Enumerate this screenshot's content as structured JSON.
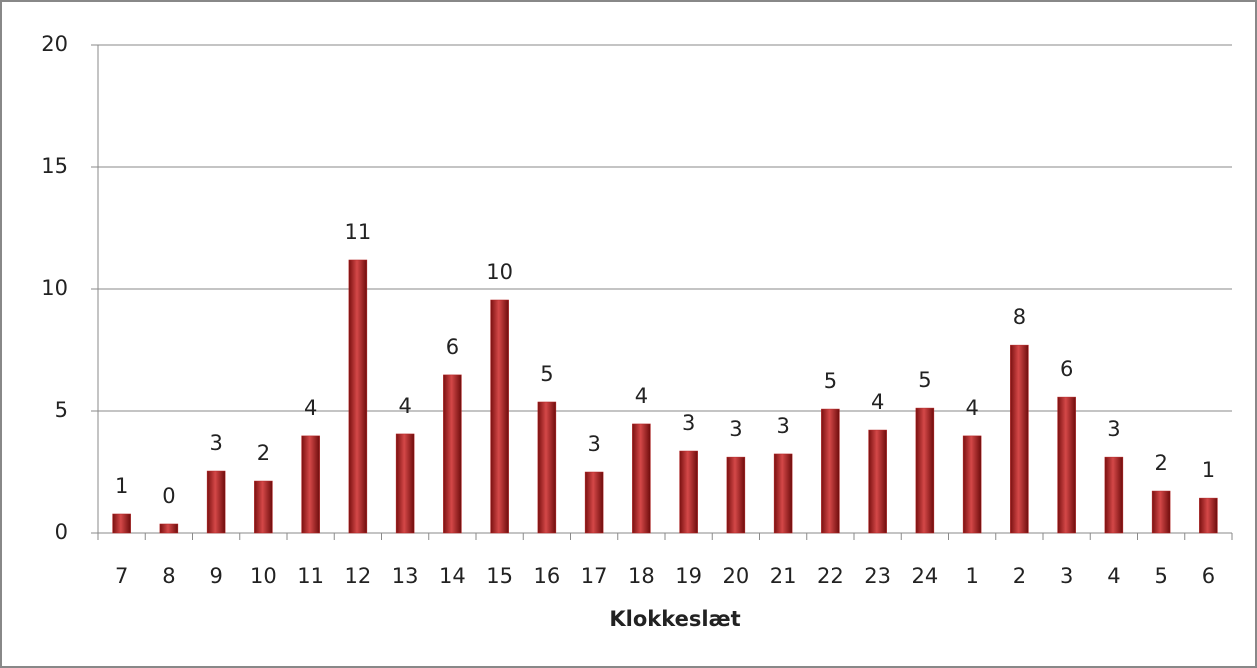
{
  "chart_data": {
    "type": "bar",
    "x_label": "Klokkeslæt",
    "categories": [
      "7",
      "8",
      "9",
      "10",
      "11",
      "12",
      "13",
      "14",
      "15",
      "16",
      "17",
      "18",
      "19",
      "20",
      "21",
      "22",
      "23",
      "24",
      "1",
      "2",
      "3",
      "4",
      "5",
      "6"
    ],
    "values": [
      0.78,
      0.37,
      2.54,
      2.13,
      3.98,
      11.19,
      4.06,
      6.48,
      9.55,
      5.37,
      2.5,
      4.47,
      3.36,
      3.11,
      3.24,
      5.08,
      4.22,
      5.12,
      3.98,
      7.7,
      5.57,
      3.11,
      1.72,
      1.43
    ],
    "value_labels": [
      "1",
      "0",
      "3",
      "2",
      "4",
      "11",
      "4",
      "6",
      "10",
      "5",
      "3",
      "4",
      "3",
      "3",
      "3",
      "5",
      "4",
      "5",
      "4",
      "8",
      "6",
      "3",
      "2",
      "1"
    ],
    "color": "#b22222",
    "ylim": [
      0,
      20
    ],
    "yticks": [
      0,
      5,
      10,
      15,
      20
    ],
    "grid": true
  }
}
